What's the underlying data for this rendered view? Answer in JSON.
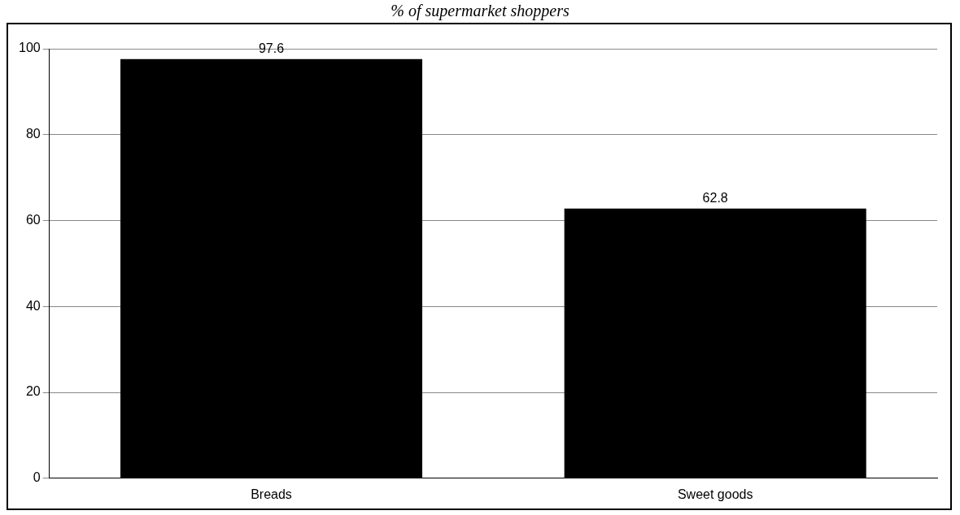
{
  "chart_data": {
    "type": "bar",
    "title": "% of supermarket shoppers",
    "categories": [
      "Breads",
      "Sweet goods"
    ],
    "values": [
      97.6,
      62.8
    ],
    "color": "#000000",
    "ylim": [
      0,
      100
    ],
    "yticks": [
      0,
      20,
      40,
      60,
      80,
      100
    ],
    "grid": "y",
    "data_labels": true,
    "legend": false
  }
}
